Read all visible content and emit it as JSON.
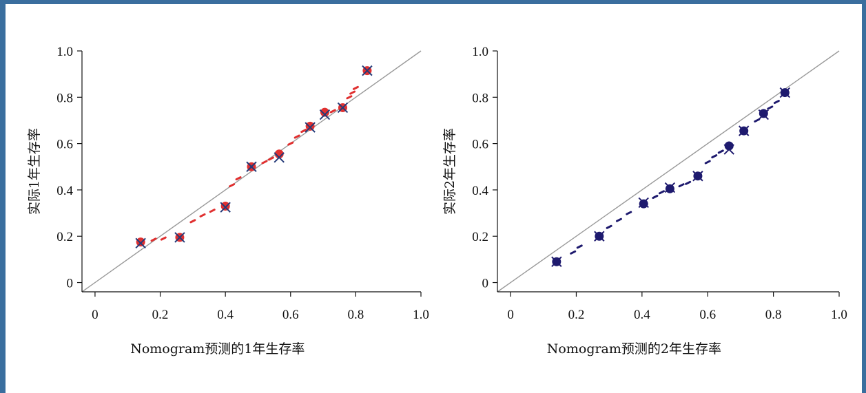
{
  "chart_data": [
    {
      "type": "scatter",
      "xlabel": "Nomogram预测的1年生存率",
      "ylabel": "实际1年生存率",
      "xlim": [
        -0.04,
        1.0
      ],
      "ylim": [
        -0.04,
        1.0
      ],
      "xticks": [
        "0",
        "0.2",
        "0.4",
        "0.6",
        "0.8",
        "1.0"
      ],
      "yticks": [
        "0",
        "0.2",
        "0.4",
        "0.6",
        "0.8",
        "1.0"
      ],
      "reference_line": "y = x",
      "point_color": "#e03030",
      "marker_color": "#243a78",
      "line_color": "#999999",
      "series": [
        {
          "marker": "dot",
          "x": [
            0.14,
            0.26,
            0.4,
            0.48,
            0.565,
            0.66,
            0.705,
            0.76,
            0.835
          ],
          "y": [
            0.175,
            0.195,
            0.33,
            0.5,
            0.555,
            0.675,
            0.735,
            0.755,
            0.915
          ]
        },
        {
          "marker": "x",
          "x": [
            0.14,
            0.26,
            0.4,
            0.48,
            0.565,
            0.66,
            0.705,
            0.76,
            0.835
          ],
          "y": [
            0.17,
            0.195,
            0.325,
            0.5,
            0.54,
            0.67,
            0.725,
            0.755,
            0.915
          ]
        }
      ],
      "trend": {
        "x": [
          0.18,
          0.21,
          0.3,
          0.33,
          0.36,
          0.42,
          0.44,
          0.52,
          0.54,
          0.6,
          0.62,
          0.64,
          0.73,
          0.78,
          0.79,
          0.8
        ],
        "y": [
          0.185,
          0.19,
          0.265,
          0.29,
          0.31,
          0.42,
          0.45,
          0.52,
          0.535,
          0.6,
          0.63,
          0.655,
          0.74,
          0.8,
          0.82,
          0.84
        ]
      }
    },
    {
      "type": "scatter",
      "xlabel": "Nomogram预测的2年生存率",
      "ylabel": "实际2年生存率",
      "xlim": [
        -0.04,
        1.0
      ],
      "ylim": [
        -0.04,
        1.0
      ],
      "xticks": [
        "0",
        "0.2",
        "0.4",
        "0.6",
        "0.8",
        "1.0"
      ],
      "yticks": [
        "0",
        "0.2",
        "0.4",
        "0.6",
        "0.8",
        "1.0"
      ],
      "reference_line": "y = x",
      "point_color": "#1e1a6e",
      "marker_color": "#1e1a6e",
      "line_color": "#999999",
      "series": [
        {
          "marker": "dot",
          "x": [
            0.14,
            0.27,
            0.405,
            0.485,
            0.57,
            0.665,
            0.71,
            0.77,
            0.835
          ],
          "y": [
            0.09,
            0.2,
            0.34,
            0.405,
            0.46,
            0.59,
            0.655,
            0.73,
            0.82
          ]
        },
        {
          "marker": "x",
          "x": [
            0.14,
            0.27,
            0.405,
            0.485,
            0.57,
            0.665,
            0.71,
            0.77,
            0.835
          ],
          "y": [
            0.09,
            0.2,
            0.345,
            0.41,
            0.46,
            0.575,
            0.655,
            0.725,
            0.82
          ]
        }
      ],
      "trend": {
        "x": [
          0.19,
          0.21,
          0.3,
          0.33,
          0.36,
          0.44,
          0.46,
          0.52,
          0.54,
          0.6,
          0.62,
          0.64,
          0.75,
          0.79,
          0.81
        ],
        "y": [
          0.13,
          0.155,
          0.24,
          0.27,
          0.3,
          0.37,
          0.39,
          0.42,
          0.43,
          0.52,
          0.545,
          0.565,
          0.7,
          0.755,
          0.78
        ]
      }
    }
  ]
}
